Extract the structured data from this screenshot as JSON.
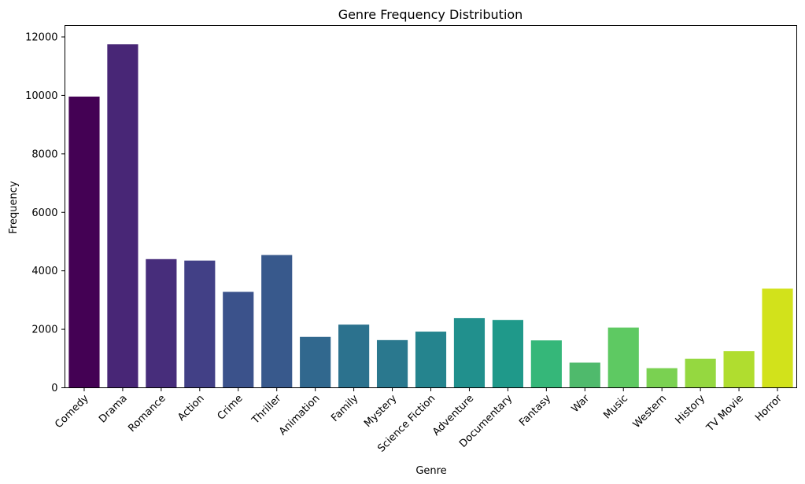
{
  "chart_data": {
    "type": "bar",
    "title": "Genre Frequency Distribution",
    "xlabel": "Genre",
    "ylabel": "Frequency",
    "categories": [
      "Comedy",
      "Drama",
      "Romance",
      "Action",
      "Crime",
      "Thriller",
      "Animation",
      "Family",
      "Mystery",
      "Science Fiction",
      "Adventure",
      "Documentary",
      "Fantasy",
      "War",
      "Music",
      "Western",
      "History",
      "TV Movie",
      "Horror"
    ],
    "values": [
      9960,
      11750,
      4400,
      4350,
      3280,
      4540,
      1740,
      2160,
      1630,
      1920,
      2380,
      2320,
      1620,
      860,
      2060,
      670,
      990,
      1250,
      3390
    ],
    "colors": [
      "#440154",
      "#482676",
      "#472d7b",
      "#424086",
      "#3b528b",
      "#38598c",
      "#31688e",
      "#2c728e",
      "#2a788e",
      "#25848e",
      "#21908d",
      "#1f998a",
      "#35b779",
      "#4fba6c",
      "#5ec962",
      "#7ad151",
      "#95d840",
      "#b0dd2f",
      "#d2e21b"
    ],
    "ylim": [
      0,
      12390
    ],
    "yticks": [
      0,
      2000,
      4000,
      6000,
      8000,
      10000,
      12000
    ],
    "grid": false
  }
}
